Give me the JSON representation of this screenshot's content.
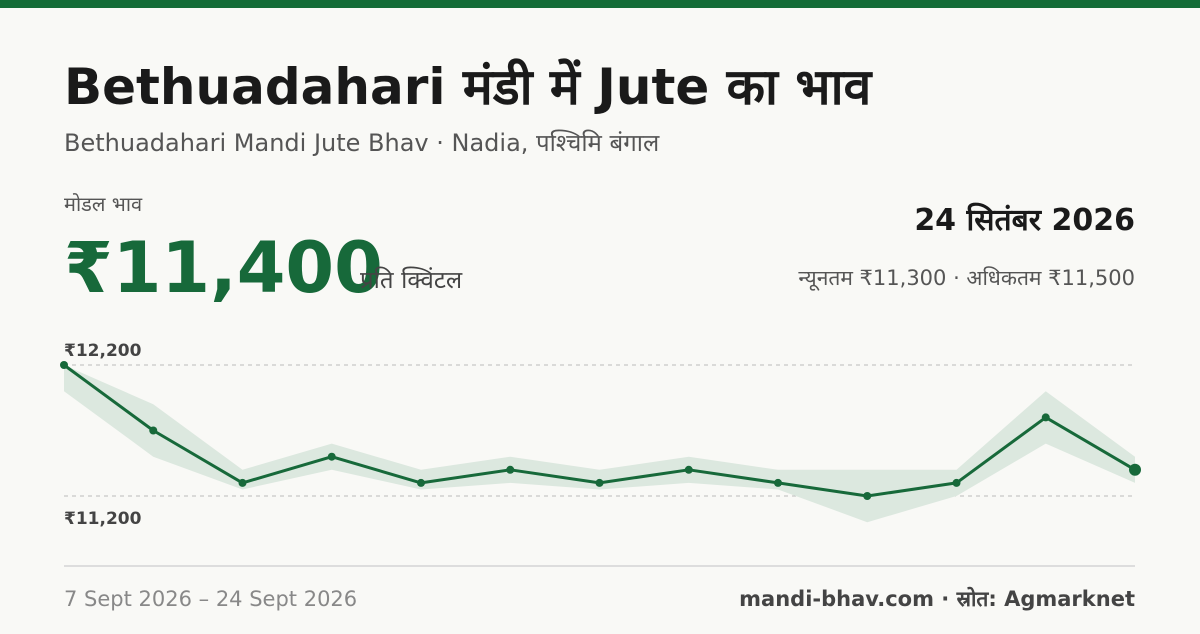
{
  "header": {
    "title": "Bethuadahari मंडी में Jute का भाव",
    "subtitle": "Bethuadahari Mandi Jute Bhav · Nadia, पश्चिमि बंगाल",
    "price_label": "मोडल भाव",
    "price": "₹11,400",
    "unit": "प्रति क्विंटल",
    "date": "24 सितंबर 2026",
    "range": "न्यूनतम ₹11,300 · अधिकतम ₹11,500"
  },
  "footer": {
    "period": "7 Sept 2026 – 24 Sept 2026",
    "source": "mandi-bhav.com · स्रोत: Agmarknet"
  },
  "chart_data": {
    "type": "line",
    "color": "#17693a",
    "band_color": "#dce8df",
    "values": [
      12200,
      11700,
      11300,
      11500,
      11300,
      11400,
      11300,
      11400,
      11300,
      11200,
      11300,
      11800,
      11400
    ],
    "max_values": [
      12200,
      11900,
      11400,
      11600,
      11400,
      11500,
      11400,
      11500,
      11400,
      11400,
      11400,
      12000,
      11500
    ],
    "min_values": [
      12000,
      11500,
      11250,
      11400,
      11250,
      11300,
      11250,
      11300,
      11250,
      11000,
      11200,
      11600,
      11300
    ],
    "ylim": [
      11000,
      12400
    ],
    "yticks": [
      {
        "value": 12200,
        "label": "₹12,200"
      },
      {
        "value": 11200,
        "label": "₹11,200"
      }
    ],
    "grid": true
  }
}
